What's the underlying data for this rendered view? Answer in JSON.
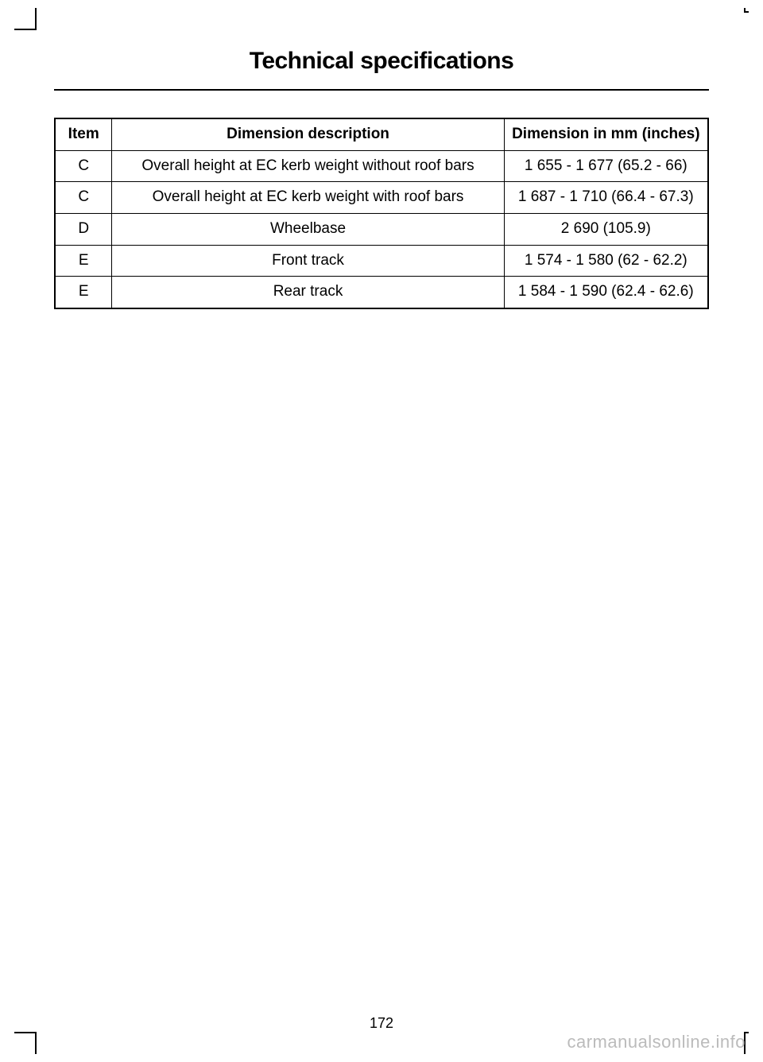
{
  "page": {
    "title": "Technical specifications",
    "number": "172",
    "watermark": "carmanualsonline.info"
  },
  "table": {
    "headers": {
      "item": "Item",
      "description": "Dimension description",
      "dimension": "Dimension in mm (inches)"
    },
    "rows": [
      {
        "item": "C",
        "description": "Overall height at EC kerb weight without roof bars",
        "dimension": "1 655 - 1 677 (65.2 - 66)"
      },
      {
        "item": "C",
        "description": "Overall height at EC kerb weight with roof bars",
        "dimension": "1 687 - 1 710 (66.4 - 67.3)"
      },
      {
        "item": "D",
        "description": "Wheelbase",
        "dimension": "2 690 (105.9)"
      },
      {
        "item": "E",
        "description": "Front track",
        "dimension": "1 574 - 1 580 (62 - 62.2)"
      },
      {
        "item": "E",
        "description": "Rear track",
        "dimension": "1 584 - 1 590 (62.4 - 62.6)"
      }
    ]
  }
}
